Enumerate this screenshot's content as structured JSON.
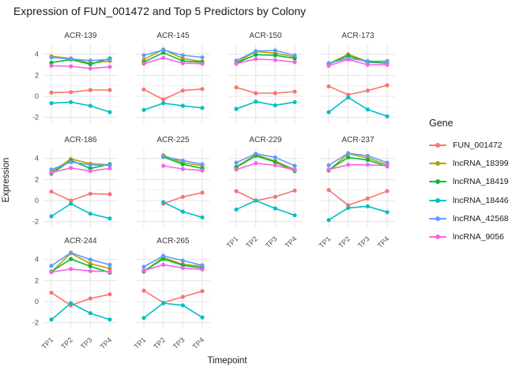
{
  "title": "Expression of FUN_001472 and Top 5 Predictors by Colony",
  "axes": {
    "x_label": "Timepoint",
    "y_label": "Expression",
    "x_ticks": [
      "TP1",
      "TP2",
      "TP3",
      "TP4"
    ],
    "y_ticks": [
      "-2",
      "0",
      "2",
      "4"
    ]
  },
  "legend": {
    "title": "Gene",
    "entries": [
      {
        "label": "FUN_001472",
        "color": "#F8766D"
      },
      {
        "label": "lncRNA_18399",
        "color": "#B79F00"
      },
      {
        "label": "lncRNA_18419",
        "color": "#00BA38"
      },
      {
        "label": "lncRNA_18446",
        "color": "#00BFC4"
      },
      {
        "label": "lncRNA_42568",
        "color": "#619CFF"
      },
      {
        "label": "lncRNA_9056",
        "color": "#F564E3"
      }
    ]
  },
  "chart_data": {
    "type": "line",
    "title": "Expression of FUN_001472 and Top 5 Predictors by Colony",
    "xlabel": "Timepoint",
    "ylabel": "Expression",
    "x": [
      "TP1",
      "TP2",
      "TP3",
      "TP4"
    ],
    "ylim": [
      -2.55,
      4.95
    ],
    "y_major_ticks": [
      -2,
      0,
      2,
      4
    ],
    "y_minor_ticks": [
      -1,
      1,
      3
    ],
    "grid": true,
    "legend_position": "right",
    "series_order": [
      "FUN_001472",
      "lncRNA_18399",
      "lncRNA_18419",
      "lncRNA_18446",
      "lncRNA_42568",
      "lncRNA_9056"
    ],
    "facets": [
      {
        "colony": "ACR-139",
        "show_x_axis": false,
        "values": {
          "FUN_001472": [
            0.35,
            0.4,
            0.6,
            0.6
          ],
          "lncRNA_18399": [
            3.8,
            3.6,
            3.15,
            3.35
          ],
          "lncRNA_18419": [
            3.2,
            3.5,
            3.05,
            3.6
          ],
          "lncRNA_18446": [
            -0.65,
            -0.55,
            -0.9,
            -1.5
          ],
          "lncRNA_42568": [
            3.7,
            3.55,
            3.4,
            3.5
          ],
          "lncRNA_9056": [
            2.9,
            2.85,
            2.65,
            2.8
          ]
        }
      },
      {
        "colony": "ACR-145",
        "show_x_axis": false,
        "values": {
          "FUN_001472": [
            0.65,
            -0.3,
            0.55,
            0.7
          ],
          "lncRNA_18399": [
            3.5,
            4.45,
            3.6,
            3.3
          ],
          "lncRNA_18419": [
            3.25,
            4.15,
            3.35,
            3.25
          ],
          "lncRNA_18446": [
            -1.3,
            -0.65,
            -0.9,
            -1.1
          ],
          "lncRNA_42568": [
            3.9,
            4.4,
            3.9,
            3.7
          ],
          "lncRNA_9056": [
            3.1,
            3.65,
            3.15,
            3.1
          ]
        }
      },
      {
        "colony": "ACR-150",
        "show_x_axis": false,
        "values": {
          "FUN_001472": [
            0.85,
            0.3,
            0.3,
            0.45
          ],
          "lncRNA_18399": [
            3.2,
            4.25,
            4.1,
            3.75
          ],
          "lncRNA_18419": [
            3.15,
            3.95,
            3.9,
            3.6
          ],
          "lncRNA_18446": [
            -1.2,
            -0.5,
            -0.85,
            -0.55
          ],
          "lncRNA_42568": [
            3.4,
            4.3,
            4.35,
            3.9
          ],
          "lncRNA_9056": [
            3.1,
            3.55,
            3.45,
            3.25
          ]
        }
      },
      {
        "colony": "ACR-173",
        "show_x_axis": false,
        "values": {
          "FUN_001472": [
            0.95,
            0.15,
            0.55,
            1.05
          ],
          "lncRNA_18399": [
            3.1,
            4.0,
            3.3,
            3.35
          ],
          "lncRNA_18419": [
            3.05,
            3.85,
            3.25,
            3.15
          ],
          "lncRNA_18446": [
            -1.5,
            -0.1,
            -1.25,
            -1.9
          ],
          "lncRNA_42568": [
            3.15,
            3.6,
            3.35,
            3.3
          ],
          "lncRNA_9056": [
            2.9,
            3.5,
            3.0,
            3.0
          ]
        }
      },
      {
        "colony": "ACR-186",
        "show_x_axis": false,
        "values": {
          "FUN_001472": [
            0.85,
            0.0,
            0.65,
            0.6
          ],
          "lncRNA_18399": [
            2.7,
            3.95,
            3.5,
            3.4
          ],
          "lncRNA_18419": [
            2.55,
            3.8,
            3.05,
            3.45
          ],
          "lncRNA_18446": [
            -1.5,
            -0.3,
            -1.25,
            -1.7
          ],
          "lncRNA_42568": [
            2.95,
            3.65,
            3.4,
            3.35
          ],
          "lncRNA_9056": [
            2.65,
            3.1,
            2.8,
            3.05
          ]
        }
      },
      {
        "colony": "ACR-225",
        "show_x_axis": false,
        "values": {
          "FUN_001472": [
            null,
            -0.3,
            0.35,
            0.75
          ],
          "lncRNA_18399": [
            null,
            4.3,
            3.6,
            3.3
          ],
          "lncRNA_18419": [
            null,
            4.15,
            3.45,
            3.05
          ],
          "lncRNA_18446": [
            null,
            -0.15,
            -1.05,
            -1.6
          ],
          "lncRNA_42568": [
            null,
            4.2,
            3.8,
            3.45
          ],
          "lncRNA_9056": [
            null,
            3.3,
            3.0,
            2.85
          ]
        }
      },
      {
        "colony": "ACR-229",
        "show_x_axis": true,
        "values": {
          "FUN_001472": [
            0.9,
            0.0,
            0.35,
            0.95
          ],
          "lncRNA_18399": [
            3.2,
            4.35,
            3.75,
            2.95
          ],
          "lncRNA_18419": [
            3.15,
            4.25,
            3.65,
            2.8
          ],
          "lncRNA_18446": [
            -0.85,
            0.0,
            -0.75,
            -1.4
          ],
          "lncRNA_42568": [
            3.6,
            4.45,
            4.1,
            3.3
          ],
          "lncRNA_9056": [
            2.95,
            3.55,
            3.35,
            2.9
          ]
        }
      },
      {
        "colony": "ACR-237",
        "show_x_axis": true,
        "values": {
          "FUN_001472": [
            1.0,
            -0.45,
            0.2,
            0.9
          ],
          "lncRNA_18399": [
            2.85,
            4.45,
            4.05,
            3.4
          ],
          "lncRNA_18419": [
            2.9,
            4.1,
            3.85,
            3.25
          ],
          "lncRNA_18446": [
            -1.85,
            -0.7,
            -0.55,
            -1.1
          ],
          "lncRNA_42568": [
            3.35,
            4.5,
            4.25,
            3.6
          ],
          "lncRNA_9056": [
            2.95,
            3.4,
            3.4,
            3.3
          ]
        }
      },
      {
        "colony": "ACR-244",
        "show_x_axis": true,
        "values": {
          "FUN_001472": [
            0.85,
            -0.35,
            0.3,
            0.7
          ],
          "lncRNA_18399": [
            2.8,
            4.6,
            3.6,
            3.15
          ],
          "lncRNA_18419": [
            2.85,
            4.05,
            3.35,
            2.75
          ],
          "lncRNA_18446": [
            -1.7,
            -0.15,
            -1.1,
            -1.7
          ],
          "lncRNA_42568": [
            3.4,
            4.65,
            4.0,
            3.5
          ],
          "lncRNA_9056": [
            2.8,
            3.1,
            2.9,
            2.85
          ]
        }
      },
      {
        "colony": "ACR-265",
        "show_x_axis": true,
        "values": {
          "FUN_001472": [
            1.05,
            -0.1,
            0.45,
            1.0
          ],
          "lncRNA_18399": [
            2.85,
            4.2,
            3.55,
            3.35
          ],
          "lncRNA_18419": [
            2.9,
            4.05,
            3.45,
            3.2
          ],
          "lncRNA_18446": [
            -1.55,
            -0.15,
            -0.35,
            -1.5
          ],
          "lncRNA_42568": [
            3.3,
            4.35,
            3.9,
            3.45
          ],
          "lncRNA_9056": [
            2.95,
            3.5,
            3.2,
            3.05
          ]
        }
      }
    ]
  }
}
